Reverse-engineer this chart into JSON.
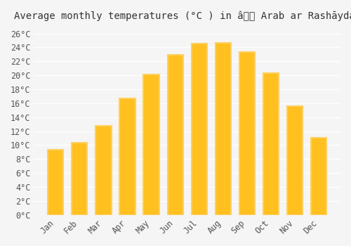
{
  "title": "Average monthly temperatures (°C ) in â Arab ar Rashāydah",
  "months": [
    "Jan",
    "Feb",
    "Mar",
    "Apr",
    "May",
    "Jun",
    "Jul",
    "Aug",
    "Sep",
    "Oct",
    "Nov",
    "Dec"
  ],
  "values": [
    9.3,
    10.4,
    12.8,
    16.7,
    20.1,
    22.9,
    24.5,
    24.6,
    23.3,
    20.3,
    15.6,
    11.1
  ],
  "bar_color_main": "#FFC020",
  "bar_color_edge": "#FFD060",
  "ylim": [
    0,
    27
  ],
  "yticks": [
    0,
    2,
    4,
    6,
    8,
    10,
    12,
    14,
    16,
    18,
    20,
    22,
    24,
    26
  ],
  "ytick_labels": [
    "0°C",
    "2°C",
    "4°C",
    "6°C",
    "8°C",
    "10°C",
    "12°C",
    "14°C",
    "16°C",
    "18°C",
    "20°C",
    "22°C",
    "24°C",
    "26°C"
  ],
  "background_color": "#f5f5f5",
  "grid_color": "#ffffff",
  "title_fontsize": 10,
  "tick_fontsize": 8.5,
  "font_family": "monospace"
}
